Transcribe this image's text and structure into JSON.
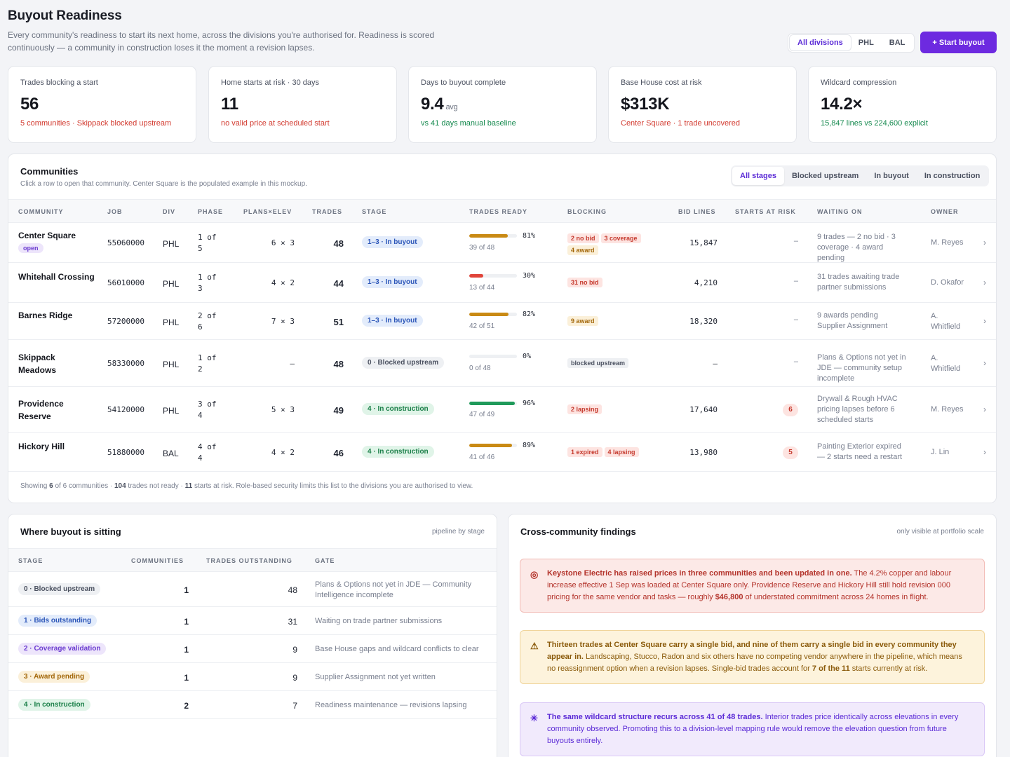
{
  "header": {
    "title": "Buyout Readiness",
    "desc1": "Every community's readiness to start its next home, across the divisions you're authorised for. Readiness is scored",
    "desc2": "continuously — a community in construction loses it the moment a revision lapses."
  },
  "divisions": {
    "options": [
      "All divisions",
      "PHL",
      "BAL"
    ],
    "selected": "All divisions"
  },
  "start_button": "+ Start buyout",
  "kpis": [
    {
      "label": "Trades blocking a start",
      "value": "56",
      "unit": "",
      "sub": "5 communities · Skippack blocked upstream",
      "tone": "red"
    },
    {
      "label": "Home starts at risk · 30 days",
      "value": "11",
      "unit": "",
      "sub": "no valid price at scheduled start",
      "tone": "red"
    },
    {
      "label": "Days to buyout complete",
      "value": "9.4",
      "unit": "avg",
      "sub": "vs 41 days manual baseline",
      "tone": "green"
    },
    {
      "label": "Base House cost at risk",
      "value": "$313K",
      "unit": "",
      "sub": "Center Square · 1 trade uncovered",
      "tone": "red"
    },
    {
      "label": "Wildcard compression",
      "value": "14.2×",
      "unit": "",
      "sub": "15,847 lines vs 224,600 explicit",
      "tone": "green"
    }
  ],
  "communities": {
    "title": "Communities",
    "subtitle": "Click a row to open that community. Center Square is the populated example in this mockup.",
    "stage_filters": [
      "All stages",
      "Blocked upstream",
      "In buyout",
      "In construction"
    ],
    "columns": [
      "COMMUNITY",
      "JOB",
      "DIV",
      "PHASE",
      "PLANS×ELEV",
      "TRADES",
      "STAGE",
      "TRADES READY",
      "BLOCKING",
      "BID LINES",
      "STARTS AT RISK",
      "WAITING ON",
      "OWNER"
    ],
    "rows": [
      {
        "name": "Center Square",
        "badge": "open",
        "job": "55060000",
        "div": "PHL",
        "phase": "1 of 5",
        "plans": "6 × 3",
        "trades": "48",
        "stage": "1–3 · In buyout",
        "stage_tone": "blue",
        "ready_pct": 81,
        "ready_pct_label": "81%",
        "ready_of": "39 of 48",
        "ready_color": "#c98a14",
        "blocking": [
          {
            "t": "2 no bid",
            "k": "red"
          },
          {
            "t": "3 coverage",
            "k": "red"
          },
          {
            "t": "4 award",
            "k": "amber"
          }
        ],
        "bid_lines": "15,847",
        "risk": "–",
        "waiting": "9 trades — 2 no bid · 3 coverage · 4 award pending",
        "owner": "M. Reyes"
      },
      {
        "name": "Whitehall Crossing",
        "badge": "",
        "job": "56010000",
        "div": "PHL",
        "phase": "1 of 3",
        "plans": "4 × 2",
        "trades": "44",
        "stage": "1–3 · In buyout",
        "stage_tone": "blue",
        "ready_pct": 30,
        "ready_pct_label": "30%",
        "ready_of": "13 of 44",
        "ready_color": "#e0443a",
        "blocking": [
          {
            "t": "31 no bid",
            "k": "red"
          }
        ],
        "bid_lines": "4,210",
        "risk": "–",
        "waiting": "31 trades awaiting trade partner submissions",
        "owner": "D. Okafor"
      },
      {
        "name": "Barnes Ridge",
        "badge": "",
        "job": "57200000",
        "div": "PHL",
        "phase": "2 of 6",
        "plans": "7 × 3",
        "trades": "51",
        "stage": "1–3 · In buyout",
        "stage_tone": "blue",
        "ready_pct": 82,
        "ready_pct_label": "82%",
        "ready_of": "42 of 51",
        "ready_color": "#c98a14",
        "blocking": [
          {
            "t": "9 award",
            "k": "amber"
          }
        ],
        "bid_lines": "18,320",
        "risk": "–",
        "waiting": "9 awards pending Supplier Assignment",
        "owner": "A. Whitfield"
      },
      {
        "name": "Skippack Meadows",
        "badge": "",
        "job": "58330000",
        "div": "PHL",
        "phase": "1 of 2",
        "plans": "–",
        "trades": "48",
        "stage": "0 · Blocked upstream",
        "stage_tone": "grey",
        "ready_pct": 0,
        "ready_pct_label": "0%",
        "ready_of": "0 of 48",
        "ready_color": "#c98a14",
        "blocking": [
          {
            "t": "blocked upstream",
            "k": "grey"
          }
        ],
        "bid_lines": "–",
        "risk": "–",
        "waiting": "Plans & Options not yet in JDE — community setup incomplete",
        "owner": "A. Whitfield"
      },
      {
        "name": "Providence Reserve",
        "badge": "",
        "job": "54120000",
        "div": "PHL",
        "phase": "3 of 4",
        "plans": "5 × 3",
        "trades": "49",
        "stage": "4 · In construction",
        "stage_tone": "green",
        "ready_pct": 96,
        "ready_pct_label": "96%",
        "ready_of": "47 of 49",
        "ready_color": "#1f9a5a",
        "blocking": [
          {
            "t": "2 lapsing",
            "k": "red"
          }
        ],
        "bid_lines": "17,640",
        "risk": "6",
        "waiting": "Drywall & Rough HVAC pricing lapses before 6 scheduled starts",
        "owner": "M. Reyes"
      },
      {
        "name": "Hickory Hill",
        "badge": "",
        "job": "51880000",
        "div": "BAL",
        "phase": "4 of 4",
        "plans": "4 × 2",
        "trades": "46",
        "stage": "4 · In construction",
        "stage_tone": "green",
        "ready_pct": 89,
        "ready_pct_label": "89%",
        "ready_of": "41 of 46",
        "ready_color": "#c98a14",
        "blocking": [
          {
            "t": "1 expired",
            "k": "red"
          },
          {
            "t": "4 lapsing",
            "k": "red"
          }
        ],
        "bid_lines": "13,980",
        "risk": "5",
        "waiting": "Painting Exterior expired — 2 starts need a restart",
        "owner": "J. Lin"
      }
    ],
    "footer": {
      "a": "Showing ",
      "b": "6",
      "c": " of 6 communities · ",
      "d": "104",
      "e": " trades not ready · ",
      "f": "11",
      "g": " starts at risk. Role-based security limits this list to the divisions you are authorised to view."
    }
  },
  "pipeline": {
    "title": "Where buyout is sitting",
    "note": "pipeline by stage",
    "columns": [
      "STAGE",
      "COMMUNITIES",
      "TRADES OUTSTANDING",
      "GATE"
    ],
    "rows": [
      {
        "stage": "0 · Blocked upstream",
        "tone": "grey",
        "communities": "1",
        "outstanding": "48",
        "gate": "Plans & Options not yet in JDE — Community Intelligence incomplete"
      },
      {
        "stage": "1 · Bids outstanding",
        "tone": "blue",
        "communities": "1",
        "outstanding": "31",
        "gate": "Waiting on trade partner submissions"
      },
      {
        "stage": "2 · Coverage validation",
        "tone": "purple",
        "communities": "1",
        "outstanding": "9",
        "gate": "Base House gaps and wildcard conflicts to clear"
      },
      {
        "stage": "3 · Award pending",
        "tone": "amber",
        "communities": "1",
        "outstanding": "9",
        "gate": "Supplier Assignment not yet written"
      },
      {
        "stage": "4 · In construction",
        "tone": "green",
        "communities": "2",
        "outstanding": "7",
        "gate": "Readiness maintenance — revisions lapsing"
      }
    ]
  },
  "findings": {
    "title": "Cross-community findings",
    "note": "only visible at portfolio scale",
    "items": [
      {
        "tone": "red",
        "icon": "◎",
        "icon_name": "alert-circle-icon",
        "bold1": "Keystone Electric has raised prices in three communities and been updated in one.",
        "text1": " The 4.2% copper and labour increase effective 1 Sep was loaded at Center Square only. Providence Reserve and Hickory Hill still hold revision 000 pricing for the same vendor and tasks — roughly ",
        "bold2": "$46,800",
        "text2": " of understated commitment across 24 homes in flight."
      },
      {
        "tone": "amber",
        "icon": "⚠",
        "icon_name": "warning-icon",
        "bold1": "Thirteen trades at Center Square carry a single bid, and nine of them carry a single bid in every community they appear in.",
        "text1": " Landscaping, Stucco, Radon and six others have no competing vendor anywhere in the pipeline, which means no reassignment option when a revision lapses. Single-bid trades account for ",
        "bold2": "7 of the 11",
        "text2": " starts currently at risk."
      },
      {
        "tone": "purple",
        "icon": "✳",
        "icon_name": "sparkle-icon",
        "bold1": "The same wildcard structure recurs across 41 of 48 trades.",
        "text1": " Interior trades price identically across elevations in every community observed. Promoting this to a division-level mapping rule would remove the elevation question from future buyouts entirely.",
        "bold2": "",
        "text2": ""
      }
    ]
  }
}
